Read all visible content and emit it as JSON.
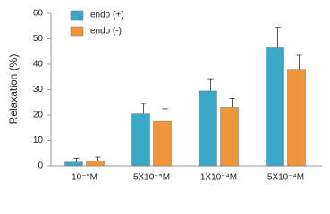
{
  "chart_data": {
    "type": "bar",
    "y_label": "Relaxation (%)",
    "categories": [
      "10⁻⁵M",
      "5X10⁻⁵M",
      "1X10⁻⁴M",
      "5X10⁻⁴M"
    ],
    "series": [
      {
        "name": "endo (+)",
        "color": "#3aa9c9",
        "values": [
          1.5,
          20.5,
          29.5,
          46.5
        ],
        "errors": [
          1.5,
          4,
          4.5,
          8
        ]
      },
      {
        "name": "endo (-)",
        "color": "#f0963a",
        "values": [
          2,
          17.5,
          23,
          38
        ],
        "errors": [
          1.5,
          5,
          3.5,
          5.5
        ]
      }
    ],
    "ylim": [
      0,
      60
    ],
    "yticks": [
      0,
      10,
      20,
      30,
      40,
      50,
      60
    ],
    "grid": false,
    "legend": "top-left"
  }
}
